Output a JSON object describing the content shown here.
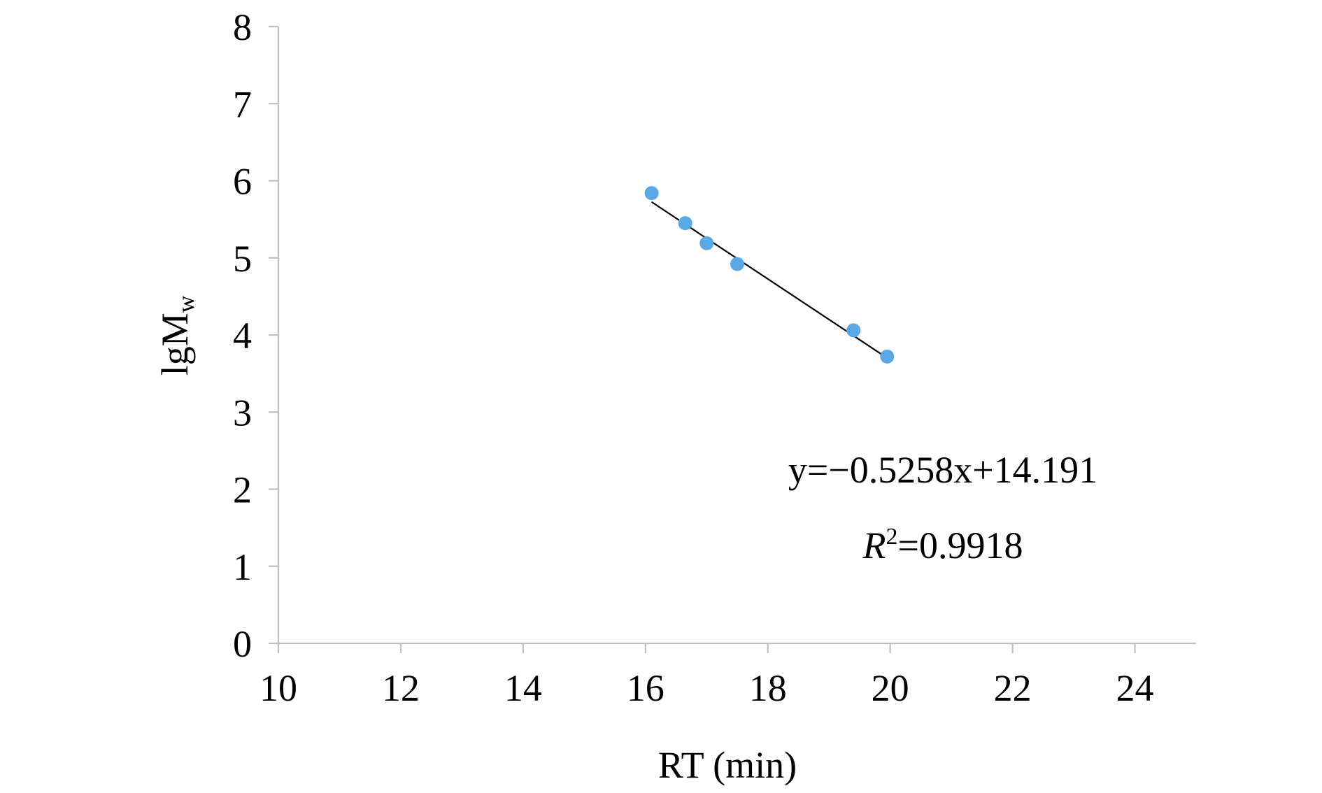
{
  "chart_data": {
    "type": "scatter",
    "title": "",
    "xlabel": "RT (min)",
    "ylabel": {
      "base": "lgM",
      "subscript": "w"
    },
    "xlim": [
      10,
      25
    ],
    "ylim": [
      0,
      8
    ],
    "x_ticks": [
      10,
      12,
      14,
      16,
      18,
      20,
      22,
      24
    ],
    "y_ticks": [
      0,
      1,
      2,
      3,
      4,
      5,
      6,
      7,
      8
    ],
    "grid": false,
    "legend": "none",
    "series": [
      {
        "color": "#5aa9e6",
        "points": [
          {
            "x": 16.1,
            "y": 5.84
          },
          {
            "x": 16.65,
            "y": 5.45
          },
          {
            "x": 17.0,
            "y": 5.19
          },
          {
            "x": 17.5,
            "y": 4.92
          },
          {
            "x": 19.4,
            "y": 4.06
          },
          {
            "x": 19.95,
            "y": 3.72
          }
        ]
      }
    ],
    "trendline": {
      "slope": -0.5258,
      "intercept": 14.191,
      "x_range": [
        16.1,
        19.95
      ],
      "color": "#000000"
    },
    "annotations": {
      "equation": "y=−0.5258x+14.191",
      "r2_symbol": "R",
      "r2_power": "2",
      "r2_value": "=0.9918"
    }
  }
}
